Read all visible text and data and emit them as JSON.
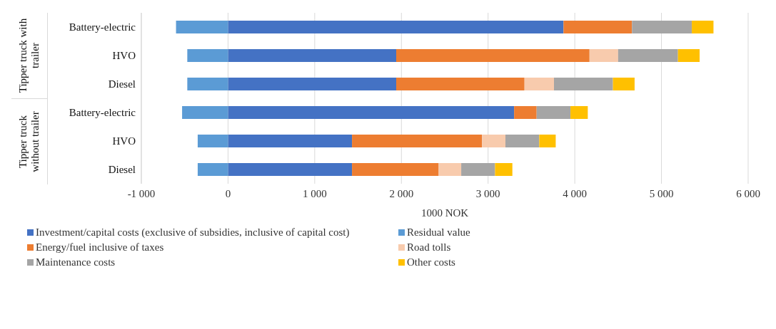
{
  "chart_data": {
    "type": "bar",
    "orientation": "horizontal",
    "stacked": true,
    "xlabel": "1000 NOK",
    "categories": [
      "Battery-electric",
      "HVO",
      "Diesel",
      "Battery-electric",
      "HVO",
      "Diesel"
    ],
    "annotations": [
      "Tipper truck with trailer",
      "Tipper truck without trailer"
    ],
    "series": [
      {
        "name": "Investment/capital costs (exclusive of subsidies, inclusive of capital cost)",
        "color": "#4472c4",
        "values": [
          3870,
          1940,
          1940,
          3300,
          1430,
          1430
        ]
      },
      {
        "name": "Residual value",
        "color": "#5b9bd5",
        "values": [
          -600,
          -470,
          -470,
          -530,
          -350,
          -350
        ]
      },
      {
        "name": "Energy/fuel inclusive of taxes",
        "color": "#ed7d31",
        "values": [
          790,
          2230,
          1480,
          260,
          1500,
          1000
        ]
      },
      {
        "name": "Road tolls",
        "color": "#f8cbad",
        "values": [
          null,
          330,
          340,
          null,
          270,
          260
        ]
      },
      {
        "name": "Maintenance costs",
        "color": "#a5a5a5",
        "values": [
          690,
          690,
          680,
          390,
          390,
          390
        ]
      },
      {
        "name": "Other costs",
        "color": "#ffc000",
        "values": [
          250,
          250,
          250,
          200,
          190,
          200
        ]
      }
    ],
    "xlim": [
      -1000,
      6000
    ],
    "xticks": [
      {
        "value": -1000,
        "label": "-1 000"
      },
      0,
      {
        "value": 1000,
        "label": "1 000"
      },
      {
        "value": 2000,
        "label": "2 000"
      },
      {
        "value": 3000,
        "label": "3 000"
      },
      {
        "value": 4000,
        "label": "4 000"
      },
      {
        "value": 5000,
        "label": "5 000"
      },
      {
        "value": 6000,
        "label": "6 000"
      }
    ],
    "grid": "x",
    "legend": "bottom"
  }
}
